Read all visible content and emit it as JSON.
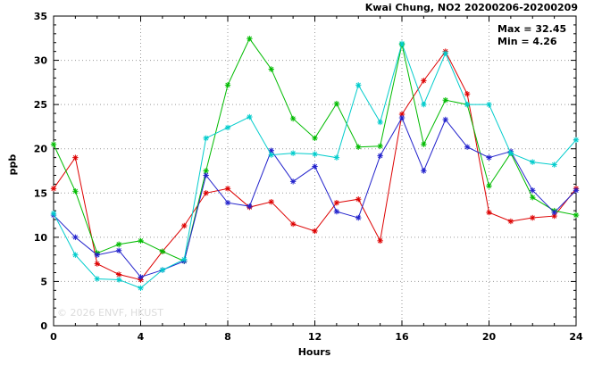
{
  "chart_data": {
    "type": "line",
    "title": "Kwai Chung, NO2 20200206-20200209",
    "xlabel": "Hours",
    "ylabel": "ppb",
    "xlim": [
      0,
      24
    ],
    "ylim": [
      0,
      35
    ],
    "xticks": [
      0,
      4,
      8,
      12,
      16,
      20,
      24
    ],
    "yticks": [
      0,
      5,
      10,
      15,
      20,
      25,
      30,
      35
    ],
    "grid": true,
    "legend": "none",
    "annotations": {
      "max": "Max = 32.45",
      "min": "Min = 4.26"
    },
    "watermark": "© 2026 ENVF, HKUST",
    "marker": "asterisk",
    "x": [
      0,
      1,
      2,
      3,
      4,
      5,
      6,
      7,
      8,
      9,
      10,
      11,
      12,
      13,
      14,
      15,
      16,
      17,
      18,
      19,
      20,
      21,
      22,
      23,
      24
    ],
    "series": [
      {
        "name": "red",
        "color": "#dd0000",
        "values": [
          15.5,
          19.0,
          7.0,
          5.8,
          5.2,
          8.4,
          11.3,
          15.0,
          15.5,
          13.4,
          14.0,
          11.5,
          10.7,
          13.9,
          14.3,
          9.6,
          23.9,
          27.7,
          31.0,
          26.2,
          12.8,
          11.8,
          12.2,
          12.4,
          15.5
        ]
      },
      {
        "name": "green",
        "color": "#00bb00",
        "values": [
          20.5,
          15.2,
          8.2,
          9.2,
          9.6,
          8.4,
          7.3,
          17.5,
          27.2,
          32.45,
          29.0,
          23.4,
          21.2,
          25.1,
          20.2,
          20.3,
          31.8,
          20.5,
          25.5,
          25.0,
          15.8,
          19.5,
          14.5,
          13.0,
          12.5
        ]
      },
      {
        "name": "blue",
        "color": "#2222cc",
        "values": [
          12.5,
          10.0,
          8.0,
          8.5,
          5.5,
          6.3,
          7.3,
          17.0,
          13.9,
          13.5,
          19.8,
          16.3,
          18.0,
          12.9,
          12.2,
          19.2,
          23.5,
          17.5,
          23.3,
          20.2,
          19.0,
          19.7,
          15.3,
          12.8,
          15.3
        ]
      },
      {
        "name": "cyan",
        "color": "#00cccc",
        "values": [
          12.7,
          8.0,
          5.3,
          5.2,
          4.26,
          6.3,
          7.5,
          21.2,
          22.4,
          23.6,
          19.3,
          19.5,
          19.4,
          19.0,
          27.2,
          23.0,
          31.9,
          25.0,
          30.8,
          25.0,
          25.0,
          19.5,
          18.5,
          18.2,
          21.0
        ]
      }
    ]
  }
}
